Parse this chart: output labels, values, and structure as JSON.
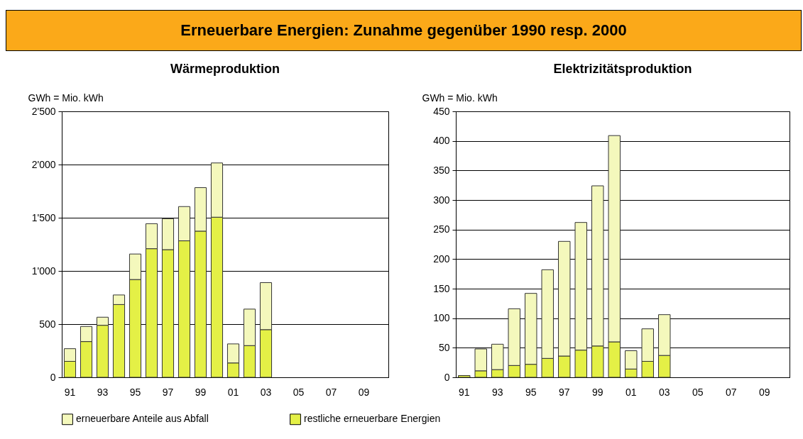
{
  "chart_data": [
    {
      "type": "bar",
      "title": "Wärmeproduktion",
      "ylabel": "GWh = Mio. kWh",
      "stacked": true,
      "grid": "y",
      "legend": "bottom",
      "annotations": [
        "Erneuerbare Energien:  Zunahme gegenüber 1990 resp. 2000"
      ],
      "categories": [
        "91",
        null,
        "93",
        null,
        "95",
        null,
        "97",
        null,
        "99",
        null,
        "01",
        null,
        "03",
        null,
        "05",
        null,
        "07",
        null,
        "09",
        null
      ],
      "ylim": [
        0,
        2500
      ],
      "yticks": [
        0,
        500,
        {
          "value": 1000,
          "label": "1'000"
        },
        {
          "value": 1500,
          "label": "1'500"
        },
        {
          "value": 2000,
          "label": "2'000"
        },
        {
          "value": 2500,
          "label": "2'500"
        }
      ],
      "series": [
        {
          "name": "restliche erneuerbare Energien",
          "color": "#e4f046",
          "values": [
            150,
            336,
            489,
            684,
            919,
            1209,
            1200,
            1283,
            1374,
            1505,
            135,
            298,
            448,
            null,
            null,
            null,
            null,
            null,
            null,
            null
          ]
        },
        {
          "name": "erneuerbare Anteile aus Abfall",
          "color": "#f4f8bc",
          "values": [
            119,
            142,
            76,
            90,
            240,
            235,
            291,
            322,
            409,
            510,
            179,
            343,
            442,
            null,
            null,
            null,
            null,
            null,
            null,
            null
          ]
        }
      ]
    },
    {
      "type": "bar",
      "title": "Elektrizitätsproduktion",
      "ylabel": "GWh = Mio. kWh",
      "stacked": true,
      "grid": "y",
      "legend": "bottom",
      "categories": [
        "91",
        null,
        "93",
        null,
        "95",
        null,
        "97",
        null,
        "99",
        null,
        "01",
        null,
        "03",
        null,
        "05",
        null,
        "07",
        null,
        "09",
        null
      ],
      "ylim": [
        0,
        450
      ],
      "yticks": [
        0,
        50,
        100,
        150,
        200,
        250,
        300,
        350,
        400,
        450
      ],
      "series": [
        {
          "name": "restliche erneuerbare Energien",
          "color": "#e4f046",
          "values": [
            3,
            11,
            13,
            20,
            22,
            32,
            36,
            46,
            53,
            60,
            14,
            27,
            37,
            null,
            null,
            null,
            null,
            null,
            null,
            null
          ]
        },
        {
          "name": "erneuerbare Anteile aus Abfall",
          "color": "#f4f8bc",
          "values": [
            null,
            37,
            43,
            96,
            120,
            150,
            194,
            216,
            271,
            349,
            31,
            55,
            69,
            null,
            null,
            null,
            null,
            null,
            null,
            null
          ]
        }
      ]
    }
  ]
}
